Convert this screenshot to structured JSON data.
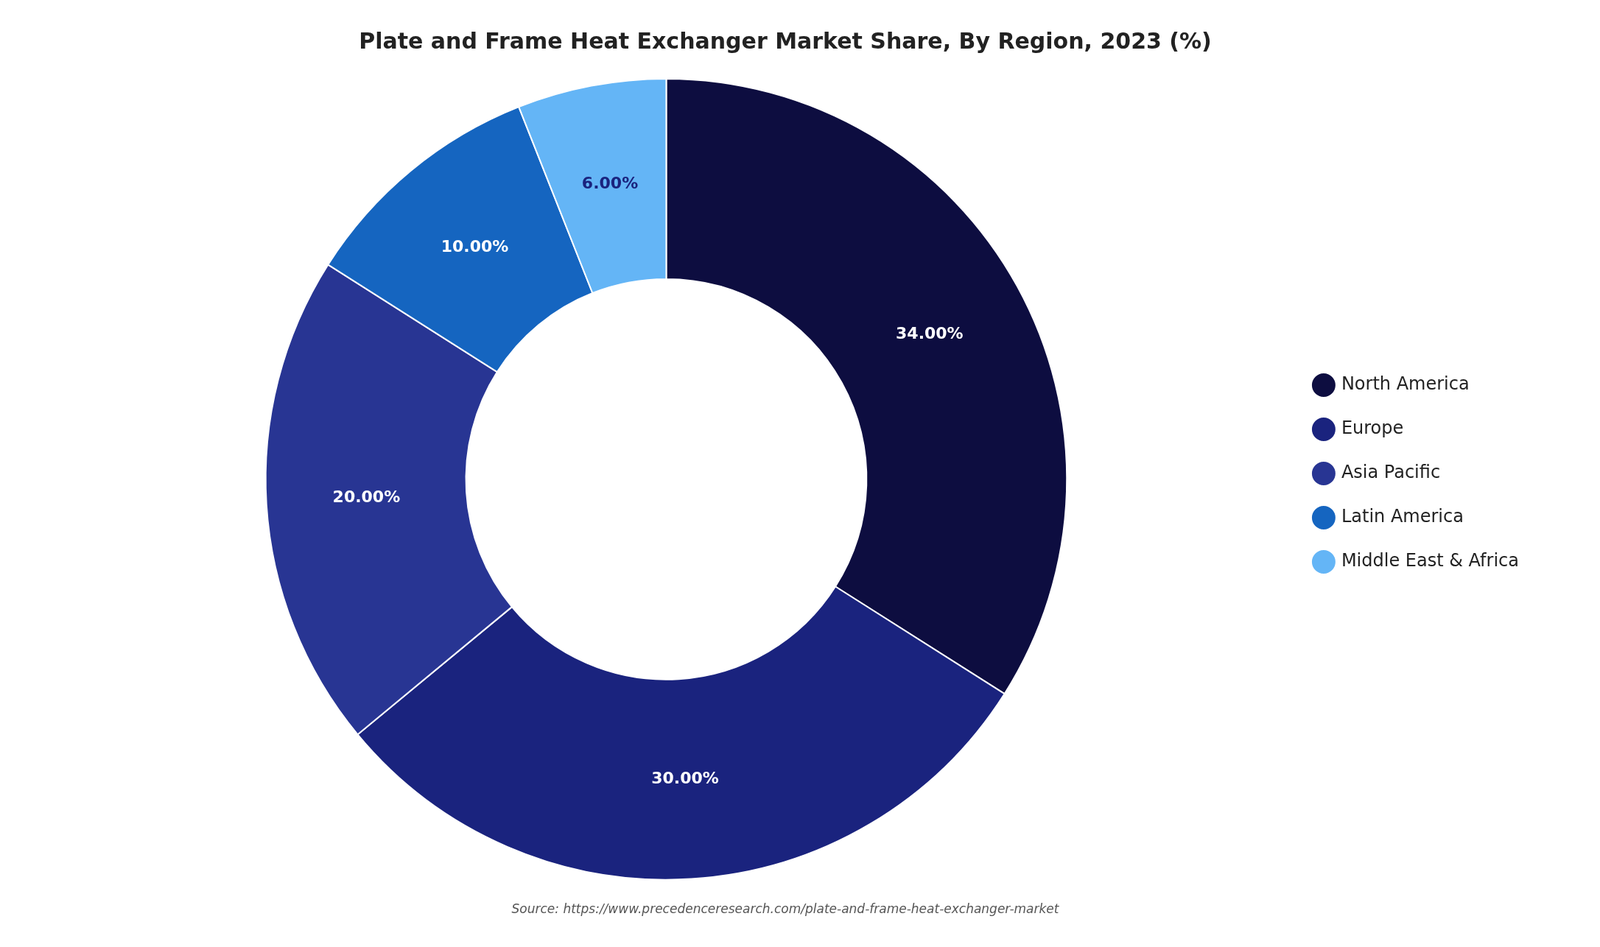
{
  "chart_data": {
    "type": "doughnut",
    "title": "Plate and Frame Heat Exchanger Market Share, By Region, 2023 (%)",
    "categories": [
      "North America",
      "Europe",
      "Asia Pacific",
      "Latin America",
      "Middle East & Africa"
    ],
    "values": [
      34.0,
      30.0,
      20.0,
      10.0,
      6.0
    ],
    "value_labels": [
      "34.00%",
      "30.00%",
      "20.00%",
      "10.00%",
      "6.00%"
    ],
    "colors": [
      "#0d0d40",
      "#1a237e",
      "#283593",
      "#1565c0",
      "#64b5f6"
    ],
    "data_labels": true,
    "legend": "right",
    "annotations": [
      "Source: https://www.precedenceresearch.com/plate-and-frame-heat-exchanger-market"
    ]
  }
}
